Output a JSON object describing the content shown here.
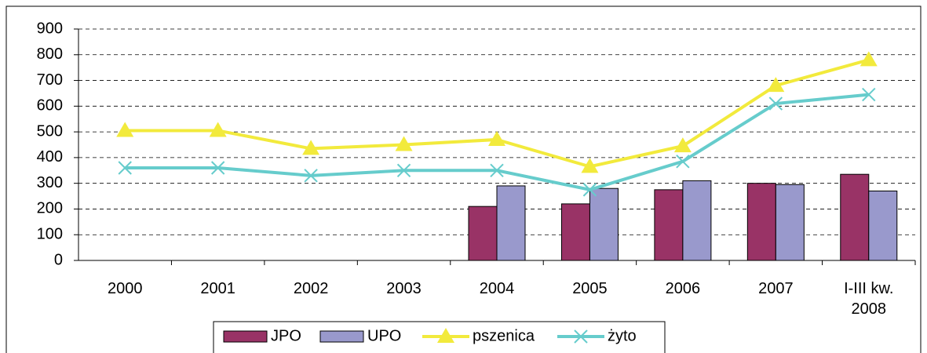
{
  "chart_data": {
    "type": "bar-line",
    "categories": [
      "2000",
      "2001",
      "2002",
      "2003",
      "2004",
      "2005",
      "2006",
      "2007",
      "I-III kw. 2008"
    ],
    "series": [
      {
        "name": "JPO",
        "type": "bar",
        "color": "#993366",
        "values": [
          null,
          null,
          null,
          null,
          210,
          220,
          275,
          300,
          335
        ]
      },
      {
        "name": "UPO",
        "type": "bar",
        "color": "#9999cc",
        "values": [
          null,
          null,
          null,
          null,
          290,
          280,
          310,
          295,
          270
        ]
      },
      {
        "name": "pszenica",
        "type": "line",
        "marker": "triangle",
        "color": "#f2ea3c",
        "values": [
          505,
          505,
          435,
          450,
          470,
          365,
          445,
          680,
          780
        ]
      },
      {
        "name": "żyto",
        "type": "line",
        "marker": "x",
        "color": "#66cccc",
        "values": [
          360,
          360,
          330,
          350,
          350,
          275,
          385,
          610,
          645
        ]
      }
    ],
    "ylim": [
      0,
      900
    ],
    "yticks": [
      0,
      100,
      200,
      300,
      400,
      500,
      600,
      700,
      800,
      900
    ],
    "grid": true,
    "legend": "bottom"
  }
}
